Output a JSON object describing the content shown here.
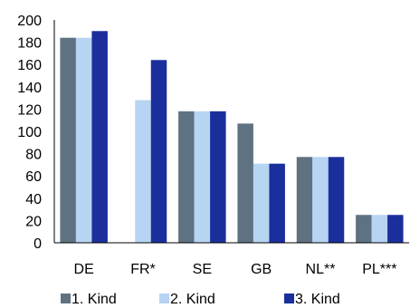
{
  "chart_data": {
    "type": "bar",
    "categories": [
      "DE",
      "FR*",
      "SE",
      "GB",
      "NL**",
      "PL***"
    ],
    "series": [
      {
        "name": "1. Kind",
        "values": [
          184,
          0,
          118,
          107,
          77,
          25
        ],
        "color": "#5f7282"
      },
      {
        "name": "2. Kind",
        "values": [
          184,
          128,
          118,
          71,
          77,
          25
        ],
        "color": "#b7d4f3"
      },
      {
        "name": "3. Kind",
        "values": [
          190,
          164,
          118,
          71,
          77,
          25
        ],
        "color": "#1b2f9c"
      }
    ],
    "y_ticks": [
      "0",
      "20",
      "40",
      "60",
      "80",
      "100",
      "120",
      "140",
      "160",
      "180",
      "200"
    ],
    "ylim": [
      0,
      200
    ],
    "grid": false,
    "legend_position": "bottom",
    "title": "",
    "xlabel": "",
    "ylabel": ""
  }
}
